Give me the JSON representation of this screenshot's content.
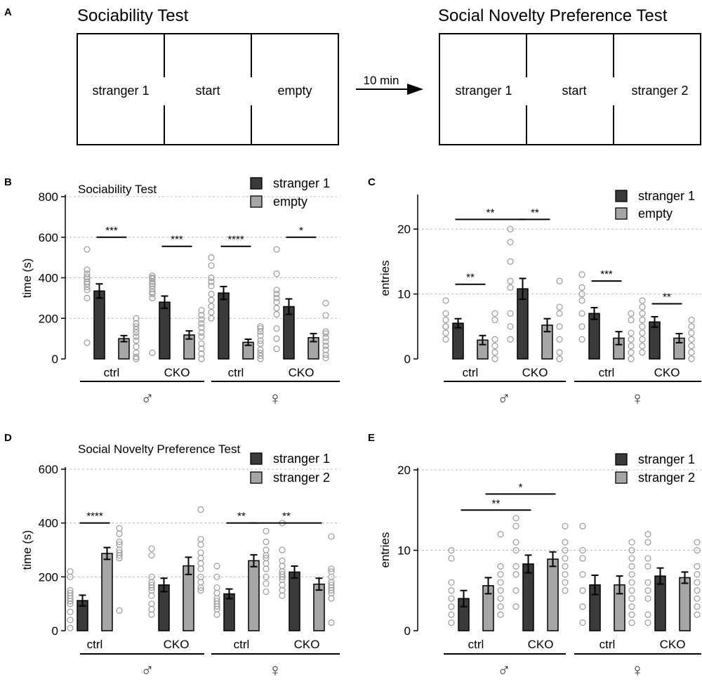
{
  "panel_a": {
    "letter": "A",
    "left_title": "Sociability Test",
    "right_title": "Social Novelty Preference Test",
    "left_chambers": [
      "stranger 1",
      "start",
      "empty"
    ],
    "right_chambers": [
      "stranger 1",
      "start",
      "stranger 2"
    ],
    "arrow_label": "10 min"
  },
  "colors": {
    "bar1": "#3a3a3a",
    "bar2": "#a6a6a6",
    "dot": "#9a9a9a",
    "grid": "#bbbbbb"
  },
  "male_symbol": "♂",
  "female_symbol": "♀",
  "chart_data": [
    {
      "id": "B",
      "letter": "B",
      "type": "bar",
      "title": "Sociability Test",
      "ylabel": "time (s)",
      "ylim": [
        0,
        800
      ],
      "yticks": [
        0,
        200,
        400,
        600,
        800
      ],
      "legend": [
        "stranger 1",
        "empty"
      ],
      "categories": [
        "ctrl",
        "CKO",
        "ctrl",
        "CKO"
      ],
      "sex_groups": [
        "♂",
        "♀"
      ],
      "series": [
        {
          "name": "stranger 1",
          "values": [
            335,
            280,
            325,
            258
          ],
          "sem": [
            35,
            30,
            32,
            38
          ],
          "points": [
            [
              540,
              440,
              420,
              405,
              395,
              380,
              370,
              355,
              340,
              300,
              80
            ],
            [
              410,
              400,
              395,
              380,
              370,
              360,
              345,
              330,
              320,
              300,
              30
            ],
            [
              500,
              460,
              400,
              380,
              360,
              320,
              290,
              260,
              230,
              200
            ],
            [
              540,
              420,
              340,
              320,
              300,
              280,
              250,
              220,
              150,
              100,
              50
            ]
          ]
        },
        {
          "name": "empty",
          "values": [
            100,
            118,
            82,
            105
          ],
          "sem": [
            15,
            20,
            15,
            20
          ],
          "points": [
            [
              200,
              175,
              160,
              145,
              130,
              110,
              90,
              60,
              30,
              10,
              0
            ],
            [
              240,
              215,
              195,
              175,
              155,
              130,
              110,
              75,
              50,
              25,
              0
            ],
            [
              160,
              150,
              135,
              115,
              90,
              75,
              45,
              30,
              15,
              0
            ],
            [
              275,
              215,
              135,
              125,
              105,
              85,
              65,
              45,
              20,
              5
            ]
          ]
        }
      ],
      "significance": [
        {
          "label": "***",
          "from": "ctrl♂-s1",
          "to": "ctrl♂-s2",
          "y": 600
        },
        {
          "label": "***",
          "from": "CKO♂-s1",
          "to": "CKO♂-s2",
          "y": 555
        },
        {
          "label": "****",
          "from": "ctrl♀-s1",
          "to": "ctrl♀-s2",
          "y": 555
        },
        {
          "label": "*",
          "from": "CKO♀-s1",
          "to": "CKO♀-s2",
          "y": 600
        }
      ]
    },
    {
      "id": "C",
      "letter": "C",
      "type": "bar",
      "title": "",
      "ylabel": "entries",
      "ylim": [
        0,
        25
      ],
      "yticks": [
        0,
        10,
        20
      ],
      "legend": [
        "stranger 1",
        "empty"
      ],
      "categories": [
        "ctrl",
        "CKO",
        "ctrl",
        "CKO"
      ],
      "sex_groups": [
        "♂",
        "♀"
      ],
      "series": [
        {
          "name": "stranger 1",
          "values": [
            5.5,
            10.8,
            7.0,
            5.7
          ],
          "sem": [
            0.7,
            1.6,
            0.9,
            0.8
          ],
          "points": [
            [
              9,
              7,
              6,
              5,
              5,
              4,
              3
            ],
            [
              20,
              18,
              15,
              12,
              11,
              7,
              5,
              3
            ],
            [
              13,
              11,
              10,
              9,
              7,
              5,
              3
            ],
            [
              9,
              8,
              7,
              6,
              5,
              4,
              3,
              2,
              1
            ]
          ]
        },
        {
          "name": "empty",
          "values": [
            2.9,
            5.2,
            3.2,
            3.2
          ],
          "sem": [
            0.7,
            1.0,
            1.0,
            0.7
          ],
          "points": [
            [
              7,
              6,
              3,
              2,
              1,
              0
            ],
            [
              12,
              8,
              7,
              5,
              3,
              1,
              0
            ],
            [
              7,
              6,
              4,
              3,
              2,
              1,
              0
            ],
            [
              6,
              5,
              4,
              3,
              2,
              1,
              0
            ]
          ]
        }
      ],
      "significance": [
        {
          "label": "**",
          "from": "ctrl♂-s1",
          "to": "ctrl♂-s2",
          "y": 11.5
        },
        {
          "label": "**",
          "from": "ctrl♂-s1",
          "to": "CKO♂-s1",
          "y": 21.5
        },
        {
          "label": "**",
          "from": "CKO♂-s1",
          "to": "CKO♂-s2",
          "y": 21.5
        },
        {
          "label": "***",
          "from": "ctrl♀-s1",
          "to": "ctrl♀-s2",
          "y": 12
        },
        {
          "label": "**",
          "from": "CKO♀-s1",
          "to": "CKO♀-s2",
          "y": 8.5
        }
      ]
    },
    {
      "id": "D",
      "letter": "D",
      "type": "bar",
      "title": "Social Novelty Preference Test",
      "ylabel": "time (s)",
      "ylim": [
        0,
        600
      ],
      "yticks": [
        0,
        200,
        400,
        600
      ],
      "legend": [
        "stranger 1",
        "stranger 2"
      ],
      "categories": [
        "ctrl",
        "CKO",
        "ctrl",
        "CKO"
      ],
      "sex_groups": [
        "♂",
        "♀"
      ],
      "series": [
        {
          "name": "stranger 1",
          "values": [
            112,
            170,
            137,
            218
          ],
          "sem": [
            20,
            25,
            18,
            22
          ],
          "points": [
            [
              220,
              200,
              150,
              140,
              130,
              120,
              110,
              100,
              70,
              40,
              10
            ],
            [
              305,
              280,
              200,
              180,
              170,
              160,
              150,
              130,
              100,
              80,
              60
            ],
            [
              240,
              200,
              160,
              140,
              120,
              110,
              100,
              90,
              80,
              60
            ],
            [
              400,
              300,
              260,
              240,
              220,
              210,
              200,
              190,
              170,
              150,
              130
            ]
          ]
        },
        {
          "name": "stranger 2",
          "values": [
            287,
            241,
            260,
            173
          ],
          "sem": [
            22,
            32,
            22,
            22
          ],
          "points": [
            [
              380,
              360,
              330,
              320,
              300,
              290,
              280,
              270,
              75
            ],
            [
              450,
              340,
              320,
              290,
              270,
              250,
              230,
              200,
              180,
              160,
              150
            ],
            [
              370,
              330,
              300,
              280,
              270,
              250,
              230,
              200,
              175,
              145
            ],
            [
              350,
              230,
              220,
              200,
              180,
              170,
              160,
              150,
              140,
              120,
              30
            ]
          ]
        }
      ],
      "significance": [
        {
          "label": "****",
          "from": "ctrl♂-s1",
          "to": "ctrl♂-s2",
          "y": 400
        },
        {
          "label": "**",
          "from": "ctrl♀-s1",
          "to": "ctrl♀-s2",
          "y": 400
        },
        {
          "label": "**",
          "from": "ctrl♀-s2",
          "to": "CKO♀-s2",
          "y": 400
        }
      ]
    },
    {
      "id": "E",
      "letter": "E",
      "type": "bar",
      "title": "",
      "ylabel": "entries",
      "ylim": [
        0,
        20
      ],
      "yticks": [
        0,
        10,
        20
      ],
      "legend": [
        "stranger 1",
        "stranger 2"
      ],
      "categories": [
        "ctrl",
        "CKO",
        "ctrl",
        "CKO"
      ],
      "sex_groups": [
        "♂",
        "♀"
      ],
      "series": [
        {
          "name": "stranger 1",
          "values": [
            4.0,
            8.3,
            5.7,
            6.8
          ],
          "sem": [
            1.0,
            1.1,
            1.2,
            1.0
          ],
          "points": [
            [
              10,
              9,
              6,
              5,
              4,
              3,
              2,
              1
            ],
            [
              14,
              13,
              11,
              10,
              8,
              7,
              5,
              3
            ],
            [
              13,
              10,
              9,
              7,
              5,
              3,
              1
            ],
            [
              12,
              11,
              9,
              8,
              6,
              5,
              4,
              2,
              1
            ]
          ]
        },
        {
          "name": "stranger 2",
          "values": [
            5.6,
            8.9,
            5.7,
            6.6
          ],
          "sem": [
            1.0,
            0.9,
            1.1,
            0.7
          ],
          "points": [
            [
              12,
              8,
              7,
              6,
              5,
              4,
              3,
              2
            ],
            [
              13,
              11,
              10,
              9,
              8,
              7,
              6,
              5
            ],
            [
              11,
              10,
              9,
              8,
              7,
              6,
              5,
              4,
              3,
              2,
              1
            ],
            [
              11,
              10,
              8,
              7,
              6,
              5,
              4,
              3,
              2
            ]
          ]
        }
      ],
      "significance": [
        {
          "label": "**",
          "from": "ctrl♂-s1",
          "to": "CKO♂-s1",
          "y": 15
        },
        {
          "label": "*",
          "from": "ctrl♂-s2",
          "to": "CKO♂-s2",
          "y": 17
        }
      ]
    }
  ]
}
